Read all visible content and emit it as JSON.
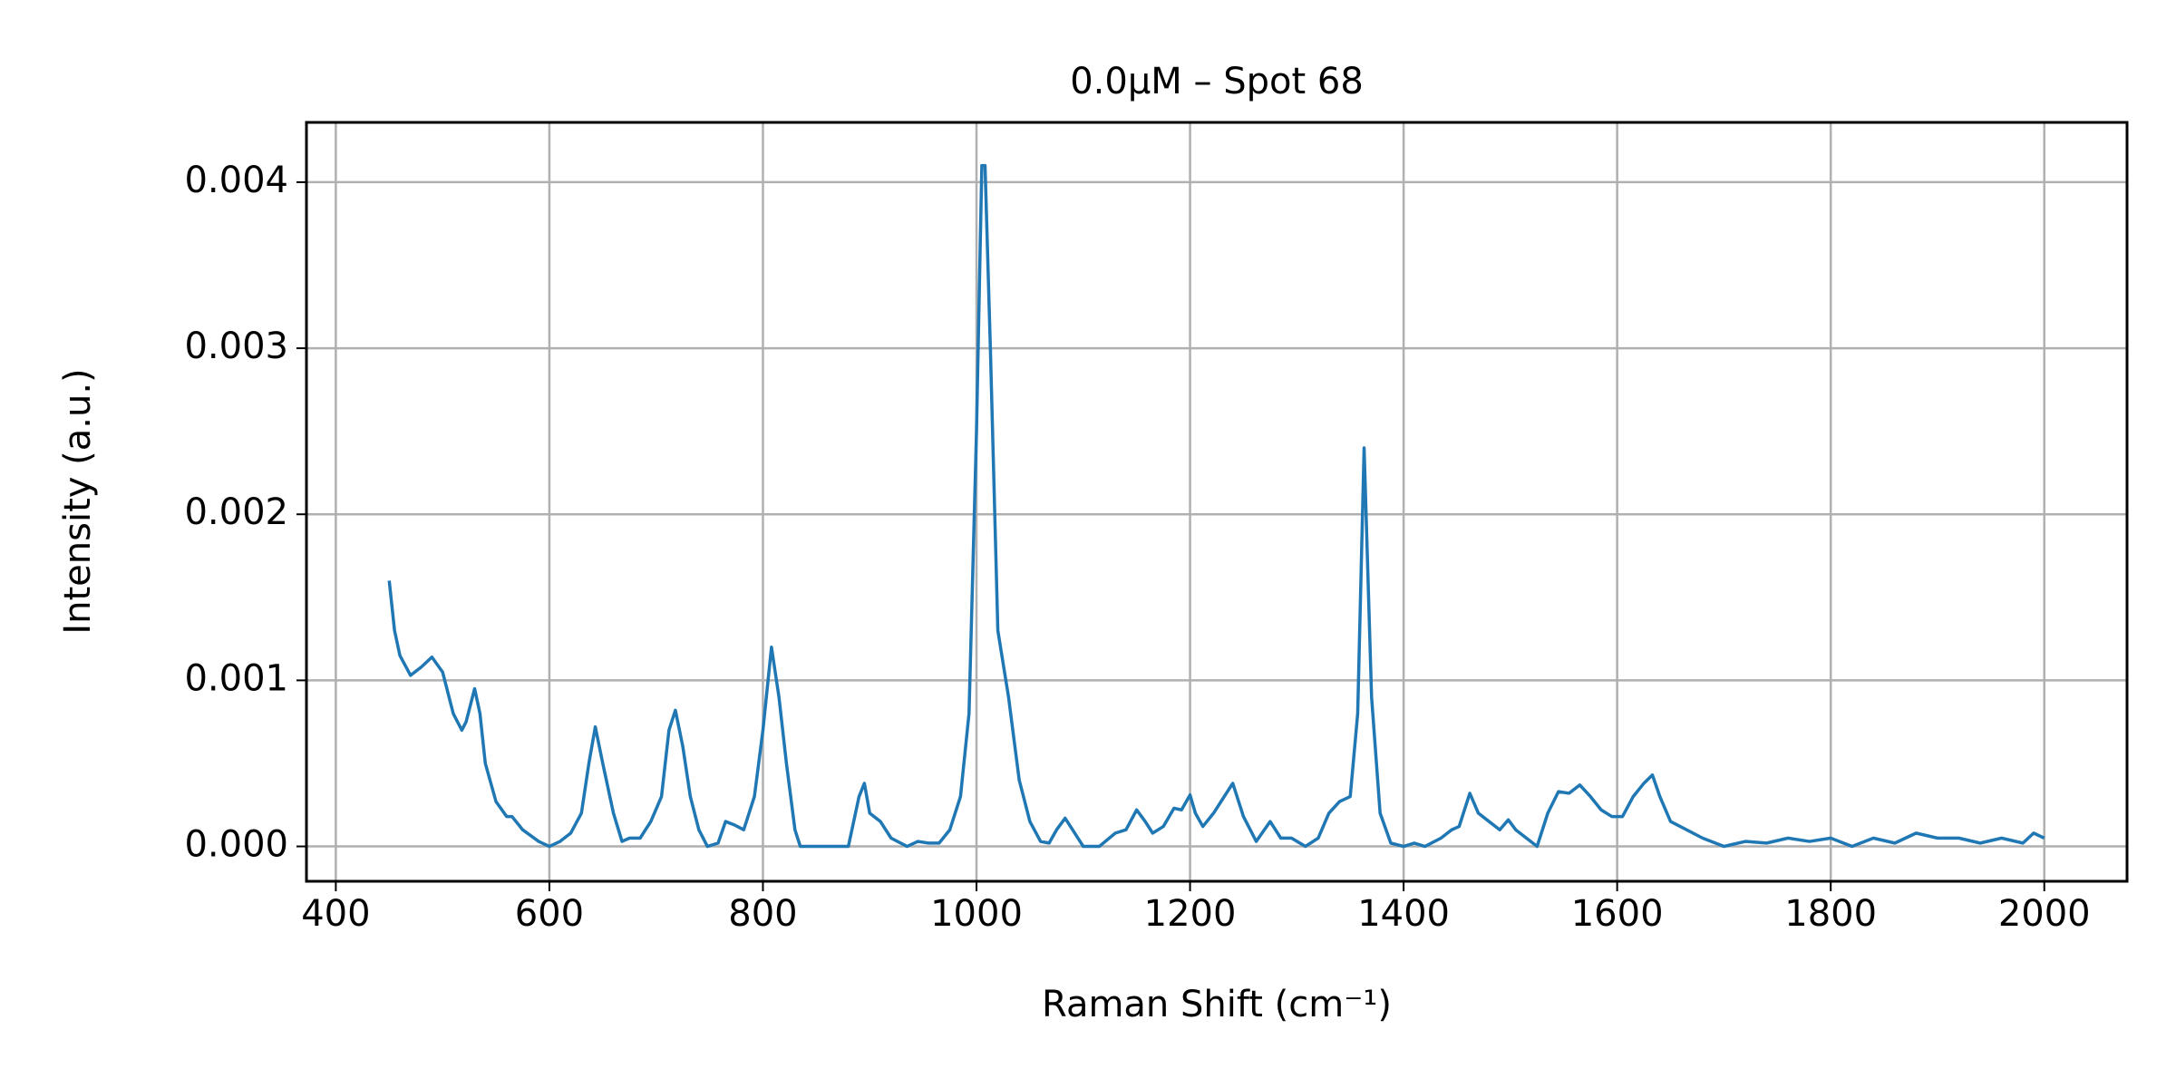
{
  "chart_data": {
    "type": "line",
    "title": "0.0μM – Spot 68",
    "xlabel": "Raman Shift (cm⁻¹)",
    "ylabel": "Intensity (a.u.)",
    "x": [
      450,
      455,
      460,
      470,
      480,
      490,
      500,
      510,
      518,
      522,
      530,
      535,
      540,
      550,
      560,
      565,
      575,
      590,
      600,
      610,
      620,
      630,
      637,
      643,
      650,
      660,
      668,
      675,
      685,
      695,
      705,
      712,
      718,
      725,
      732,
      740,
      748,
      758,
      765,
      773,
      782,
      792,
      800,
      808,
      815,
      822,
      830,
      835,
      850,
      870,
      880,
      890,
      895,
      900,
      910,
      920,
      935,
      945,
      955,
      965,
      975,
      985,
      993,
      1000,
      1005,
      1008,
      1013,
      1020,
      1030,
      1040,
      1050,
      1060,
      1068,
      1075,
      1083,
      1090,
      1100,
      1115,
      1130,
      1140,
      1150,
      1158,
      1165,
      1175,
      1185,
      1192,
      1200,
      1205,
      1212,
      1222,
      1230,
      1240,
      1250,
      1262,
      1275,
      1285,
      1295,
      1308,
      1320,
      1330,
      1340,
      1350,
      1357,
      1363,
      1370,
      1378,
      1388,
      1400,
      1410,
      1420,
      1435,
      1445,
      1452,
      1462,
      1470,
      1480,
      1490,
      1498,
      1505,
      1515,
      1525,
      1535,
      1545,
      1555,
      1565,
      1575,
      1585,
      1595,
      1605,
      1615,
      1625,
      1633,
      1640,
      1650,
      1665,
      1680,
      1700,
      1720,
      1740,
      1760,
      1780,
      1800,
      1820,
      1840,
      1860,
      1880,
      1900,
      1920,
      1940,
      1960,
      1980,
      1990,
      2000
    ],
    "series": [
      {
        "color": "#1f77b4",
        "values": [
          0.0016,
          0.0013,
          0.00115,
          0.00103,
          0.00108,
          0.00114,
          0.00105,
          0.0008,
          0.0007,
          0.00075,
          0.00095,
          0.0008,
          0.0005,
          0.00027,
          0.00018,
          0.00018,
          0.0001,
          3e-05,
          0.0,
          3e-05,
          8e-05,
          0.0002,
          0.0005,
          0.00072,
          0.0005,
          0.0002,
          3e-05,
          5e-05,
          5e-05,
          0.00015,
          0.0003,
          0.0007,
          0.00082,
          0.0006,
          0.0003,
          0.0001,
          0.0,
          2e-05,
          0.00015,
          0.00013,
          0.0001,
          0.0003,
          0.0007,
          0.0012,
          0.0009,
          0.0005,
          0.0001,
          0.0,
          0.0,
          0.0,
          0.0,
          0.0003,
          0.00038,
          0.0002,
          0.00015,
          5e-05,
          0.0,
          3e-05,
          2e-05,
          2e-05,
          0.0001,
          0.0003,
          0.0008,
          0.0025,
          0.0041,
          0.0041,
          0.003,
          0.0013,
          0.0009,
          0.0004,
          0.00015,
          3e-05,
          2e-05,
          0.0001,
          0.00017,
          0.0001,
          0.0,
          0.0,
          8e-05,
          0.0001,
          0.00022,
          0.00015,
          8e-05,
          0.00012,
          0.00023,
          0.00022,
          0.00031,
          0.0002,
          0.00012,
          0.0002,
          0.00028,
          0.00038,
          0.00018,
          3e-05,
          0.00015,
          5e-05,
          5e-05,
          0.0,
          5e-05,
          0.0002,
          0.00027,
          0.0003,
          0.0008,
          0.0024,
          0.0009,
          0.0002,
          2e-05,
          0.0,
          2e-05,
          0.0,
          5e-05,
          0.0001,
          0.00012,
          0.00032,
          0.0002,
          0.00015,
          0.0001,
          0.00016,
          0.0001,
          5e-05,
          0.0,
          0.0002,
          0.00033,
          0.00032,
          0.00037,
          0.0003,
          0.00022,
          0.00018,
          0.00018,
          0.0003,
          0.00038,
          0.00043,
          0.0003,
          0.00015,
          0.0001,
          5e-05,
          0.0,
          3e-05,
          2e-05,
          5e-05,
          3e-05,
          5e-05,
          0.0,
          5e-05,
          2e-05,
          8e-05,
          5e-05,
          5e-05,
          2e-05,
          5e-05,
          2e-05,
          8e-05,
          5e-05
        ]
      }
    ],
    "xlim": [
      372.5,
      2077.5
    ],
    "xticks": [
      400,
      600,
      800,
      1000,
      1200,
      1400,
      1600,
      1800,
      2000
    ],
    "ylim": [
      -0.00021,
      0.00436
    ],
    "yticks": [
      {
        "value": 0,
        "label": "0.000"
      },
      {
        "value": 0.001,
        "label": "0.001"
      },
      {
        "value": 0.002,
        "label": "0.002"
      },
      {
        "value": 0.003,
        "label": "0.003"
      },
      {
        "value": 0.004,
        "label": "0.004"
      }
    ],
    "grid": true
  }
}
